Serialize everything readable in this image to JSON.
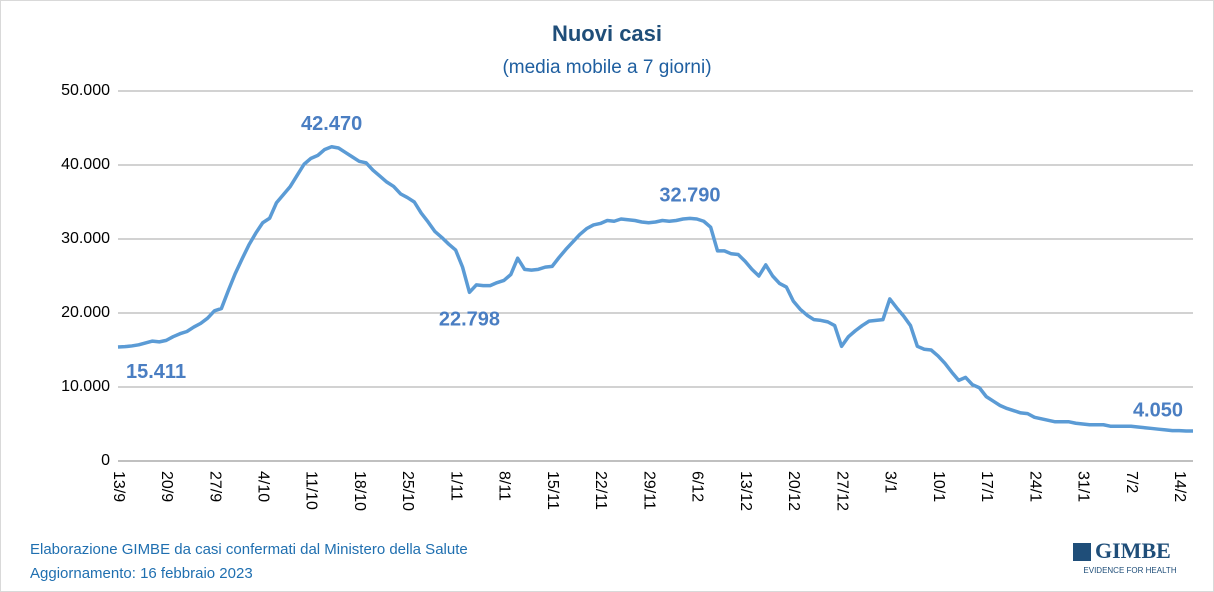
{
  "chart_data": {
    "type": "line",
    "title": "Nuovi casi",
    "subtitle": "(media mobile a 7 giorni)",
    "categories": [
      "13/9",
      null,
      null,
      null,
      null,
      null,
      null,
      "20/9",
      null,
      null,
      null,
      null,
      null,
      null,
      "27/9",
      null,
      null,
      null,
      null,
      null,
      null,
      "4/10",
      null,
      null,
      null,
      null,
      null,
      null,
      "11/10",
      null,
      null,
      null,
      null,
      null,
      null,
      "18/10",
      null,
      null,
      null,
      null,
      null,
      null,
      "25/10",
      null,
      null,
      null,
      null,
      null,
      null,
      "1/11",
      null,
      null,
      null,
      null,
      null,
      null,
      "8/11",
      null,
      null,
      null,
      null,
      null,
      null,
      "15/11",
      null,
      null,
      null,
      null,
      null,
      null,
      "22/11",
      null,
      null,
      null,
      null,
      null,
      null,
      "29/11",
      null,
      null,
      null,
      null,
      null,
      null,
      "6/12",
      null,
      null,
      null,
      null,
      null,
      null,
      "13/12",
      null,
      null,
      null,
      null,
      null,
      null,
      "20/12",
      null,
      null,
      null,
      null,
      null,
      null,
      "27/12",
      null,
      null,
      null,
      null,
      null,
      null,
      "3/1",
      null,
      null,
      null,
      null,
      null,
      null,
      "10/1",
      null,
      null,
      null,
      null,
      null,
      null,
      "17/1",
      null,
      null,
      null,
      null,
      null,
      null,
      "24/1",
      null,
      null,
      null,
      null,
      null,
      null,
      "31/1",
      null,
      null,
      null,
      null,
      null,
      null,
      "7/2",
      null,
      null,
      null,
      null,
      null,
      null,
      "14/2",
      null,
      null
    ],
    "values": [
      15411,
      15450,
      15550,
      15700,
      15950,
      16200,
      16100,
      16300,
      16800,
      17200,
      17500,
      18100,
      18600,
      19300,
      20300,
      20600,
      23000,
      25300,
      27300,
      29200,
      30800,
      32200,
      32800,
      34900,
      36000,
      37100,
      38600,
      40100,
      40900,
      41300,
      42100,
      42470,
      42300,
      41700,
      41100,
      40500,
      40300,
      39300,
      38500,
      37700,
      37100,
      36100,
      35600,
      35000,
      33500,
      32300,
      31000,
      30200,
      29300,
      28500,
      26200,
      22798,
      23800,
      23700,
      23700,
      24100,
      24400,
      25200,
      27400,
      25900,
      25800,
      25900,
      26200,
      26300,
      27500,
      28600,
      29600,
      30600,
      31400,
      31900,
      32100,
      32500,
      32400,
      32700,
      32600,
      32500,
      32300,
      32200,
      32300,
      32500,
      32400,
      32500,
      32700,
      32790,
      32700,
      32400,
      31600,
      28400,
      28400,
      28000,
      27900,
      27000,
      25900,
      25000,
      26500,
      25000,
      24000,
      23500,
      21600,
      20500,
      19700,
      19100,
      19000,
      18800,
      18300,
      15500,
      16800,
      17600,
      18300,
      18900,
      19000,
      19100,
      21900,
      20700,
      19600,
      18300,
      15500,
      15100,
      15000,
      14200,
      13200,
      12000,
      10900,
      11300,
      10300,
      9900,
      8700,
      8100,
      7500,
      7100,
      6800,
      6500,
      6400,
      5900,
      5700,
      5500,
      5300,
      5300,
      5300,
      5100,
      5000,
      4900,
      4900,
      4900,
      4700,
      4700,
      4700,
      4700,
      4600,
      4500,
      4400,
      4300,
      4200,
      4100,
      4100,
      4050,
      4050
    ],
    "value_labels": [
      "15.411",
      null,
      null,
      null,
      null,
      null,
      null,
      null,
      null,
      null,
      null,
      null,
      null,
      null,
      null,
      null,
      null,
      null,
      null,
      null,
      null,
      null,
      null,
      null,
      null,
      null,
      null,
      null,
      null,
      null,
      null,
      "42.470",
      null,
      null,
      null,
      null,
      null,
      null,
      null,
      null,
      null,
      null,
      null,
      null,
      null,
      null,
      null,
      null,
      null,
      null,
      null,
      "22.798",
      null,
      null,
      null,
      null,
      null,
      null,
      null,
      null,
      null,
      null,
      null,
      null,
      null,
      null,
      null,
      null,
      null,
      null,
      null,
      null,
      null,
      null,
      null,
      null,
      null,
      null,
      null,
      null,
      null,
      null,
      null,
      "32.790",
      null,
      null,
      null,
      null,
      null,
      null,
      null,
      null,
      null,
      null,
      null,
      null,
      null,
      null,
      null,
      null,
      null,
      null,
      null,
      null,
      null,
      null,
      null,
      null,
      null,
      null,
      null,
      null,
      null,
      null,
      null,
      null,
      null,
      null,
      null,
      null,
      null,
      null,
      null,
      null,
      null,
      null,
      null,
      null,
      null,
      null,
      null,
      null,
      null,
      null,
      null,
      null,
      null,
      null,
      null,
      null,
      null,
      null,
      null,
      null,
      null,
      null,
      null,
      null,
      null,
      null,
      null,
      null,
      null,
      null,
      null,
      null,
      "4.050"
    ],
    "color": "#5b9bd5",
    "ylim": [
      0,
      50000
    ],
    "yticks": [
      0,
      {
        "value": 10000,
        "label": "10.000"
      },
      {
        "value": 20000,
        "label": "20.000"
      },
      {
        "value": 30000,
        "label": "30.000"
      },
      {
        "value": 40000,
        "label": "40.000"
      },
      {
        "value": 50000,
        "label": "50.000"
      }
    ],
    "grid": true
  },
  "footer": {
    "line1": "Elaborazione GIMBE da casi confermati dal Ministero della Salute",
    "line2": "Aggiornamento: 16 febbraio 2023"
  },
  "logo": {
    "name": "GIMBE",
    "tagline": "EVIDENCE FOR HEALTH"
  }
}
